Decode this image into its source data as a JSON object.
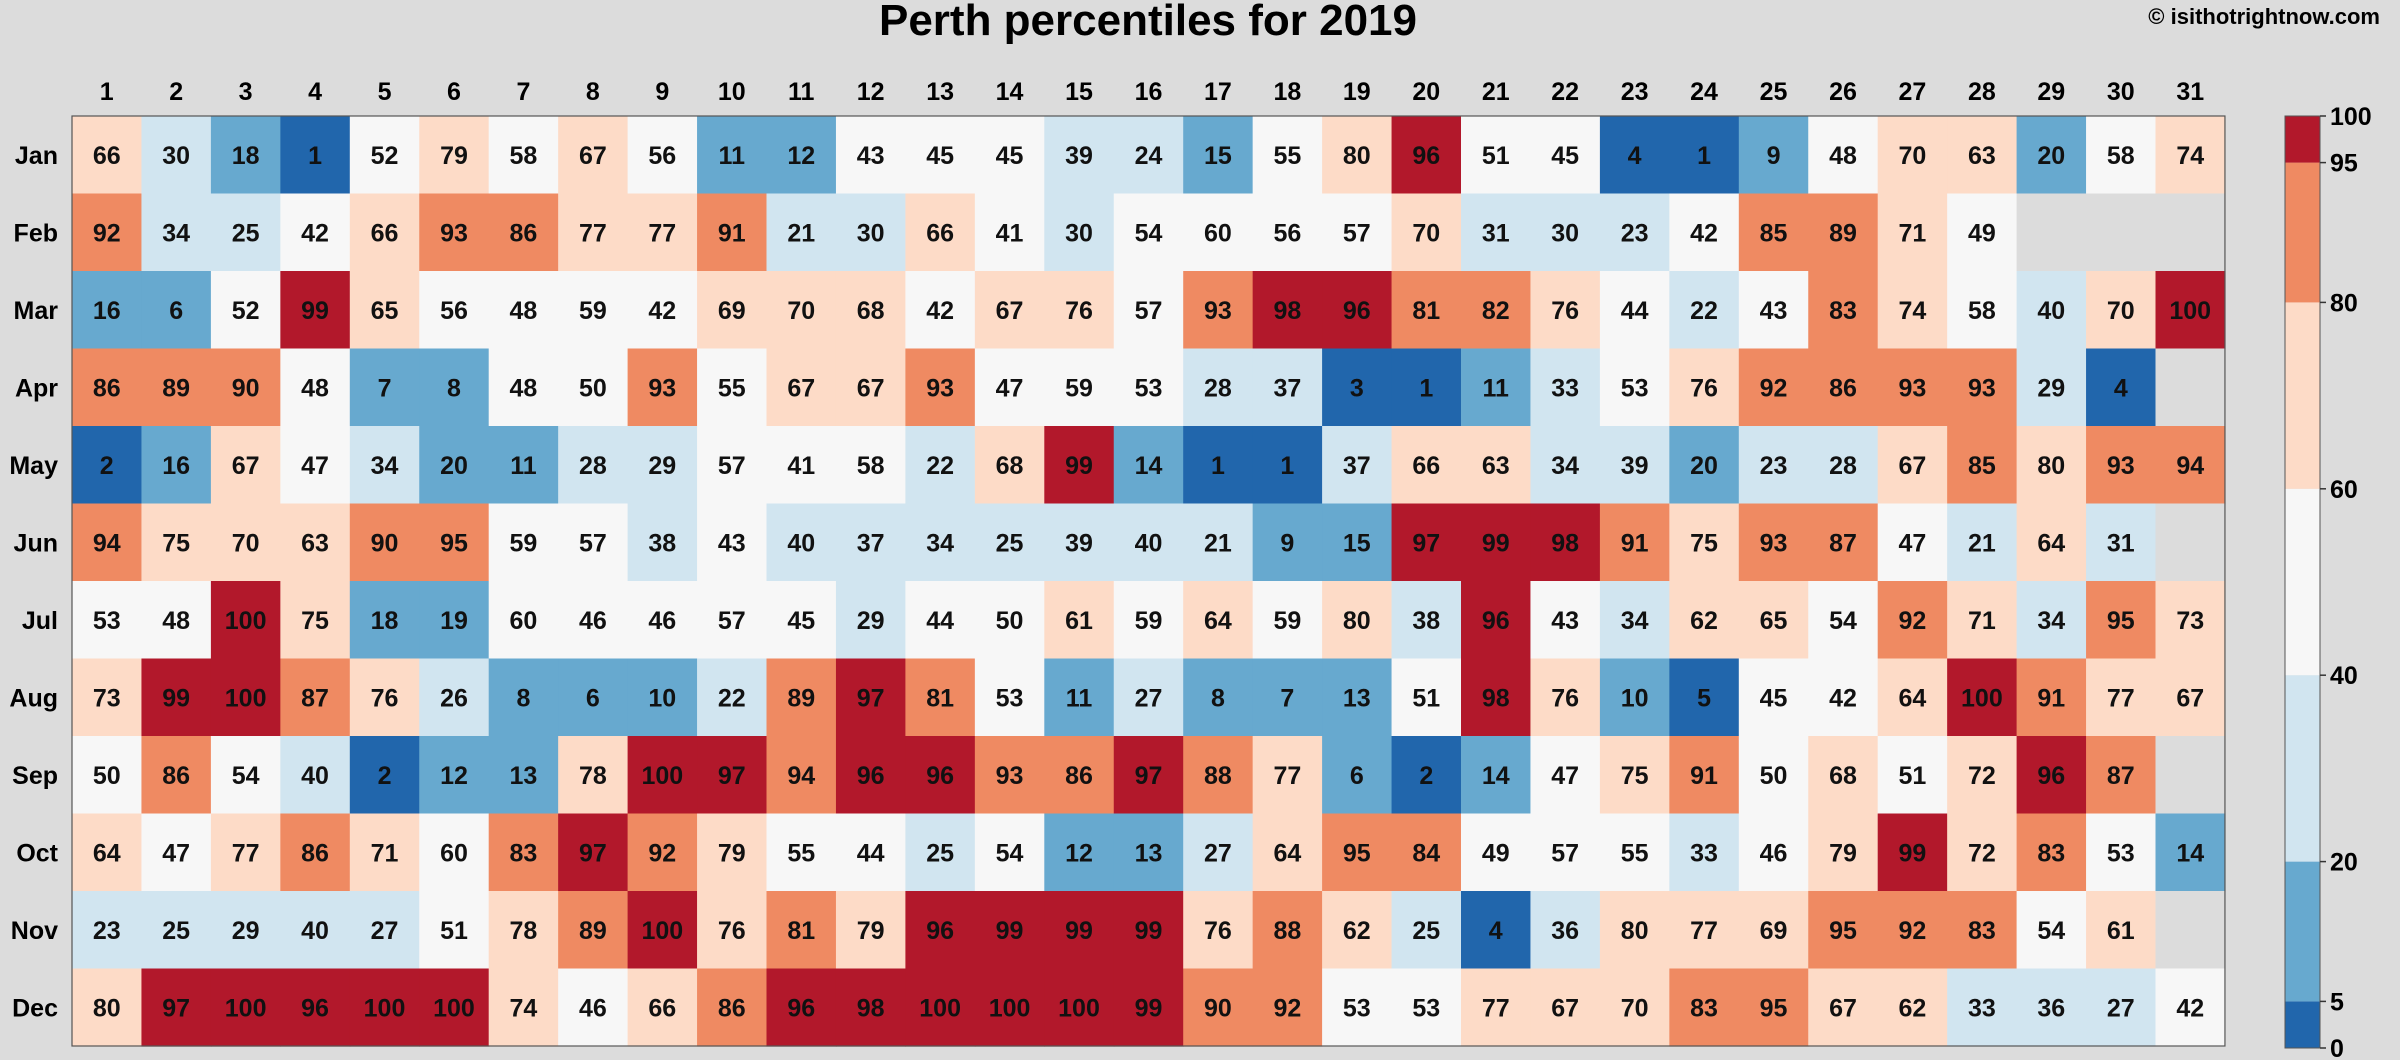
{
  "chart_data": {
    "type": "heatmap",
    "title": "Perth percentiles for 2019",
    "credit": "© isithotrightnow.com",
    "columns": [
      "1",
      "2",
      "3",
      "4",
      "5",
      "6",
      "7",
      "8",
      "9",
      "10",
      "11",
      "12",
      "13",
      "14",
      "15",
      "16",
      "17",
      "18",
      "19",
      "20",
      "21",
      "22",
      "23",
      "24",
      "25",
      "26",
      "27",
      "28",
      "29",
      "30",
      "31"
    ],
    "rows": [
      "Jan",
      "Feb",
      "Mar",
      "Apr",
      "May",
      "Jun",
      "Jul",
      "Aug",
      "Sep",
      "Oct",
      "Nov",
      "Dec"
    ],
    "values": [
      [
        66,
        30,
        18,
        1,
        52,
        79,
        58,
        67,
        56,
        11,
        12,
        43,
        45,
        45,
        39,
        24,
        15,
        55,
        80,
        96,
        51,
        45,
        4,
        1,
        9,
        48,
        70,
        63,
        20,
        58,
        74
      ],
      [
        92,
        34,
        25,
        42,
        66,
        93,
        86,
        77,
        77,
        91,
        21,
        30,
        66,
        41,
        30,
        54,
        60,
        56,
        57,
        70,
        31,
        30,
        23,
        42,
        85,
        89,
        71,
        49,
        null,
        null,
        null
      ],
      [
        16,
        6,
        52,
        99,
        65,
        56,
        48,
        59,
        42,
        69,
        70,
        68,
        42,
        67,
        76,
        57,
        93,
        98,
        96,
        81,
        82,
        76,
        44,
        22,
        43,
        83,
        74,
        58,
        40,
        70,
        100
      ],
      [
        86,
        89,
        90,
        48,
        7,
        8,
        48,
        50,
        93,
        55,
        67,
        67,
        93,
        47,
        59,
        53,
        28,
        37,
        3,
        1,
        11,
        33,
        53,
        76,
        92,
        86,
        93,
        93,
        29,
        4,
        null
      ],
      [
        2,
        16,
        67,
        47,
        34,
        20,
        11,
        28,
        29,
        57,
        41,
        58,
        22,
        68,
        99,
        14,
        1,
        1,
        37,
        66,
        63,
        34,
        39,
        20,
        23,
        28,
        67,
        85,
        80,
        93,
        94
      ],
      [
        94,
        75,
        70,
        63,
        90,
        95,
        59,
        57,
        38,
        43,
        40,
        37,
        34,
        25,
        39,
        40,
        21,
        9,
        15,
        97,
        99,
        98,
        91,
        75,
        93,
        87,
        47,
        21,
        64,
        31,
        null
      ],
      [
        53,
        48,
        100,
        75,
        18,
        19,
        60,
        46,
        46,
        57,
        45,
        29,
        44,
        50,
        61,
        59,
        64,
        59,
        80,
        38,
        96,
        43,
        34,
        62,
        65,
        54,
        92,
        71,
        34,
        95,
        73
      ],
      [
        73,
        99,
        100,
        87,
        76,
        26,
        8,
        6,
        10,
        22,
        89,
        97,
        81,
        53,
        11,
        27,
        8,
        7,
        13,
        51,
        98,
        76,
        10,
        5,
        45,
        42,
        64,
        100,
        91,
        77,
        67
      ],
      [
        50,
        86,
        54,
        40,
        2,
        12,
        13,
        78,
        100,
        97,
        94,
        96,
        96,
        93,
        86,
        97,
        88,
        77,
        6,
        2,
        14,
        47,
        75,
        91,
        50,
        68,
        51,
        72,
        96,
        87,
        null
      ],
      [
        64,
        47,
        77,
        86,
        71,
        60,
        83,
        97,
        92,
        79,
        55,
        44,
        25,
        54,
        12,
        13,
        27,
        64,
        95,
        84,
        49,
        57,
        55,
        33,
        46,
        79,
        99,
        72,
        83,
        53,
        14
      ],
      [
        23,
        25,
        29,
        40,
        27,
        51,
        78,
        89,
        100,
        76,
        81,
        79,
        96,
        99,
        99,
        99,
        76,
        88,
        62,
        25,
        4,
        36,
        80,
        77,
        69,
        95,
        92,
        83,
        54,
        61,
        null
      ],
      [
        80,
        97,
        100,
        96,
        100,
        100,
        74,
        46,
        66,
        86,
        96,
        98,
        100,
        100,
        100,
        99,
        90,
        92,
        53,
        53,
        77,
        67,
        70,
        83,
        95,
        67,
        62,
        33,
        36,
        27,
        42
      ]
    ],
    "colorbar": {
      "boundaries": [
        0,
        5,
        20,
        40,
        60,
        80,
        95,
        100
      ],
      "colors": [
        "#2166ac",
        "#67a9cf",
        "#d1e5f0",
        "#f7f7f7",
        "#fddbc7",
        "#ef8a62",
        "#b2182b"
      ],
      "tick_labels": [
        "0",
        "5",
        "20",
        "40",
        "60",
        "80",
        "95",
        "100"
      ]
    },
    "missing_color": "#dcdcdc"
  }
}
